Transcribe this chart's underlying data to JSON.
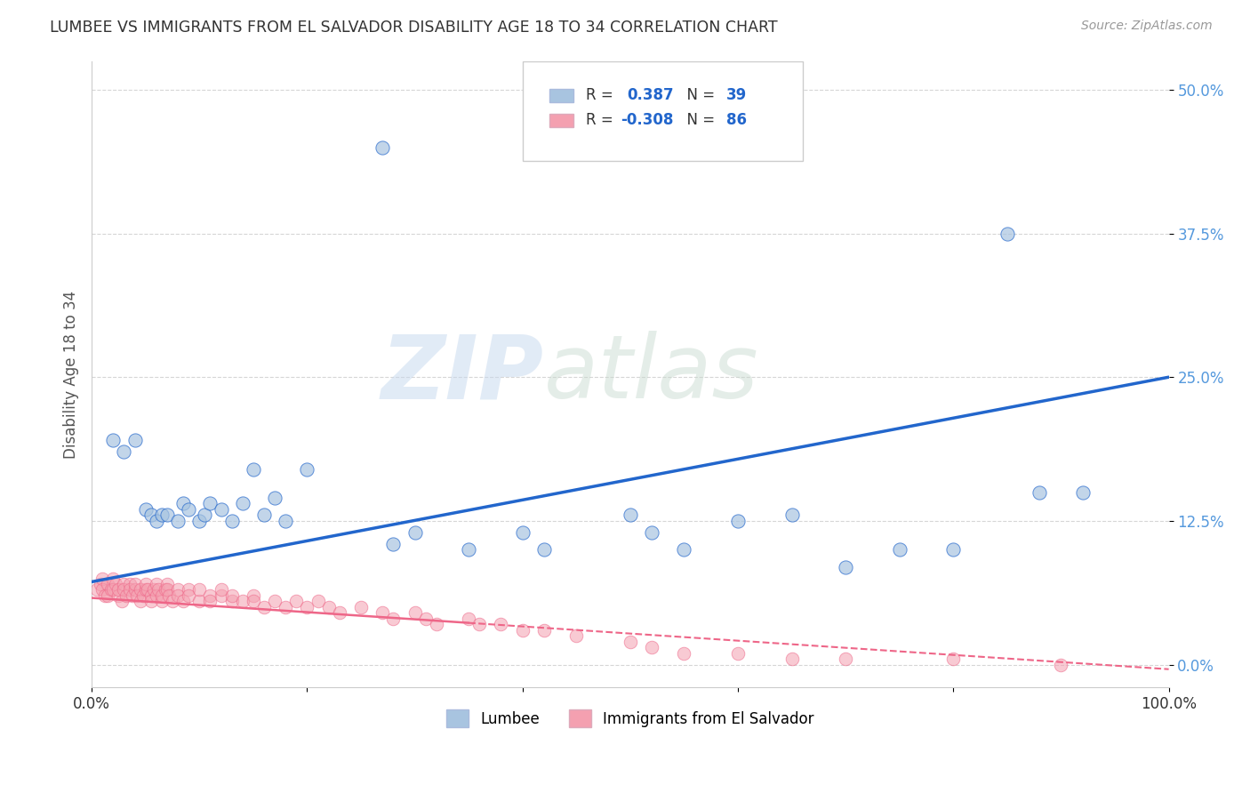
{
  "title": "LUMBEE VS IMMIGRANTS FROM EL SALVADOR DISABILITY AGE 18 TO 34 CORRELATION CHART",
  "source": "Source: ZipAtlas.com",
  "ylabel": "Disability Age 18 to 34",
  "lumbee_R": 0.387,
  "lumbee_N": 39,
  "salvador_R": -0.308,
  "salvador_N": 86,
  "lumbee_color": "#A8C4E0",
  "salvador_color": "#F4A0B0",
  "lumbee_line_color": "#2266CC",
  "salvador_line_color": "#EE6688",
  "xlim": [
    0,
    1.0
  ],
  "ylim": [
    -0.02,
    0.525
  ],
  "yticks": [
    0.0,
    0.125,
    0.25,
    0.375,
    0.5
  ],
  "ytick_labels": [
    "0.0%",
    "12.5%",
    "25.0%",
    "37.5%",
    "50.0%"
  ],
  "watermark_zip": "ZIP",
  "watermark_atlas": "atlas",
  "lumbee_x": [
    0.02,
    0.03,
    0.04,
    0.05,
    0.055,
    0.06,
    0.065,
    0.07,
    0.08,
    0.085,
    0.09,
    0.1,
    0.105,
    0.11,
    0.12,
    0.13,
    0.14,
    0.15,
    0.16,
    0.17,
    0.18,
    0.2,
    0.27,
    0.28,
    0.3,
    0.35,
    0.4,
    0.42,
    0.5,
    0.52,
    0.55,
    0.6,
    0.65,
    0.7,
    0.75,
    0.8,
    0.85,
    0.88,
    0.92
  ],
  "lumbee_y": [
    0.195,
    0.185,
    0.195,
    0.135,
    0.13,
    0.125,
    0.13,
    0.13,
    0.125,
    0.14,
    0.135,
    0.125,
    0.13,
    0.14,
    0.135,
    0.125,
    0.14,
    0.17,
    0.13,
    0.145,
    0.125,
    0.17,
    0.45,
    0.105,
    0.115,
    0.1,
    0.115,
    0.1,
    0.13,
    0.115,
    0.1,
    0.125,
    0.13,
    0.085,
    0.1,
    0.1,
    0.375,
    0.15,
    0.15
  ],
  "salvador_x": [
    0.005,
    0.008,
    0.01,
    0.01,
    0.012,
    0.015,
    0.015,
    0.018,
    0.02,
    0.02,
    0.022,
    0.025,
    0.025,
    0.028,
    0.03,
    0.03,
    0.032,
    0.035,
    0.035,
    0.038,
    0.04,
    0.04,
    0.042,
    0.045,
    0.045,
    0.048,
    0.05,
    0.05,
    0.052,
    0.055,
    0.055,
    0.058,
    0.06,
    0.06,
    0.062,
    0.065,
    0.065,
    0.068,
    0.07,
    0.07,
    0.072,
    0.075,
    0.08,
    0.08,
    0.085,
    0.09,
    0.09,
    0.1,
    0.1,
    0.11,
    0.11,
    0.12,
    0.12,
    0.13,
    0.13,
    0.14,
    0.15,
    0.15,
    0.16,
    0.17,
    0.18,
    0.19,
    0.2,
    0.21,
    0.22,
    0.23,
    0.25,
    0.27,
    0.28,
    0.3,
    0.31,
    0.32,
    0.35,
    0.36,
    0.38,
    0.4,
    0.42,
    0.45,
    0.5,
    0.52,
    0.55,
    0.6,
    0.65,
    0.7,
    0.8,
    0.9
  ],
  "salvador_y": [
    0.065,
    0.07,
    0.075,
    0.065,
    0.06,
    0.07,
    0.06,
    0.065,
    0.075,
    0.065,
    0.07,
    0.06,
    0.065,
    0.055,
    0.07,
    0.065,
    0.06,
    0.07,
    0.065,
    0.06,
    0.065,
    0.07,
    0.06,
    0.065,
    0.055,
    0.06,
    0.065,
    0.07,
    0.065,
    0.06,
    0.055,
    0.065,
    0.07,
    0.06,
    0.065,
    0.055,
    0.06,
    0.065,
    0.07,
    0.065,
    0.06,
    0.055,
    0.065,
    0.06,
    0.055,
    0.065,
    0.06,
    0.055,
    0.065,
    0.06,
    0.055,
    0.06,
    0.065,
    0.055,
    0.06,
    0.055,
    0.06,
    0.055,
    0.05,
    0.055,
    0.05,
    0.055,
    0.05,
    0.055,
    0.05,
    0.045,
    0.05,
    0.045,
    0.04,
    0.045,
    0.04,
    0.035,
    0.04,
    0.035,
    0.035,
    0.03,
    0.03,
    0.025,
    0.02,
    0.015,
    0.01,
    0.01,
    0.005,
    0.005,
    0.005,
    0.0
  ]
}
